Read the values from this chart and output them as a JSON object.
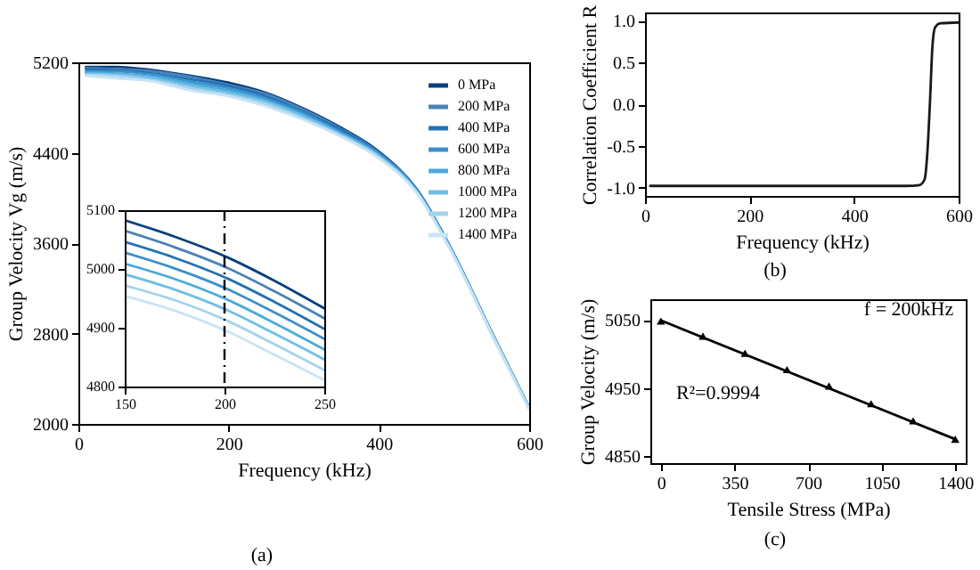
{
  "chart_data": [
    {
      "type": "line",
      "xlabel": "Frequency (kHz)",
      "ylabel": "Group Velocity Vg (m/s)",
      "xlim": [
        0,
        600
      ],
      "ylim": [
        2000,
        5200
      ],
      "xticks": [
        0,
        200,
        400,
        600
      ],
      "yticks": [
        2000,
        2800,
        3600,
        4400,
        5200
      ],
      "legend": "top right",
      "x": [
        10,
        50,
        100,
        150,
        200,
        250,
        300,
        350,
        400,
        450,
        500,
        550,
        600
      ],
      "annotations": [
        "(a)"
      ],
      "series": [
        {
          "name": "0 MPa",
          "color": "#08407e",
          "values": [
            5160,
            5160,
            5130,
            5080,
            5020,
            4930,
            4790,
            4620,
            4410,
            4080,
            3500,
            2810,
            2140
          ]
        },
        {
          "name": "200 MPa",
          "color": "#4b82b8",
          "values": [
            5150,
            5140,
            5120,
            5070,
            5000,
            4920,
            4780,
            4610,
            4400,
            4080,
            3500,
            2810,
            2140
          ]
        },
        {
          "name": "400 MPa",
          "color": "#2171b5",
          "values": [
            5140,
            5130,
            5100,
            5050,
            4990,
            4900,
            4760,
            4600,
            4390,
            4070,
            3490,
            2810,
            2140
          ]
        },
        {
          "name": "600 MPa",
          "color": "#3d8fcc",
          "values": [
            5120,
            5120,
            5090,
            5030,
            4970,
            4880,
            4750,
            4580,
            4390,
            4070,
            3490,
            2800,
            2140
          ]
        },
        {
          "name": "800 MPa",
          "color": "#4aaadc",
          "values": [
            5110,
            5100,
            5070,
            5010,
            4950,
            4860,
            4730,
            4570,
            4380,
            4060,
            3490,
            2800,
            2140
          ]
        },
        {
          "name": "1000 MPa",
          "color": "#6fbfe6",
          "values": [
            5100,
            5090,
            5060,
            4990,
            4930,
            4850,
            4720,
            4560,
            4370,
            4060,
            3490,
            2800,
            2140
          ]
        },
        {
          "name": "1200 MPa",
          "color": "#a3d3ee",
          "values": [
            5090,
            5080,
            5040,
            4970,
            4910,
            4830,
            4700,
            4550,
            4360,
            4050,
            3480,
            2800,
            2130
          ]
        },
        {
          "name": "1400 MPa",
          "color": "#c9e4f4",
          "values": [
            5080,
            5060,
            5030,
            4950,
            4900,
            4810,
            4690,
            4540,
            4350,
            4050,
            3480,
            2800,
            2130
          ]
        }
      ]
    },
    {
      "type": "line",
      "xlim": [
        150,
        250
      ],
      "ylim": [
        4800,
        5100
      ],
      "xticks": [
        150,
        200,
        250
      ],
      "yticks": [
        4800,
        4900,
        5000,
        5100
      ],
      "x": [
        150,
        175,
        200,
        225,
        250
      ],
      "ref_lines": [
        {
          "axis": "x",
          "value": 200,
          "color": "#000000",
          "line_style": "dashed"
        }
      ],
      "series": [
        {
          "color": "#08407e",
          "values": [
            5083,
            5055,
            5022,
            4980,
            4933
          ]
        },
        {
          "color": "#4b82b8",
          "values": [
            5065,
            5037,
            5004,
            4962,
            4916
          ]
        },
        {
          "color": "#2171b5",
          "values": [
            5046,
            5019,
            4986,
            4944,
            4898
          ]
        },
        {
          "color": "#3d8fcc",
          "values": [
            5028,
            5001,
            4968,
            4926,
            4881
          ]
        },
        {
          "color": "#4aaadc",
          "values": [
            5009,
            4983,
            4950,
            4908,
            4863
          ]
        },
        {
          "color": "#6fbfe6",
          "values": [
            4991,
            4965,
            4932,
            4890,
            4846
          ]
        },
        {
          "color": "#a3d3ee",
          "values": [
            4972,
            4947,
            4914,
            4872,
            4828
          ]
        },
        {
          "color": "#c9e4f4",
          "values": [
            4954,
            4929,
            4896,
            4854,
            4811
          ]
        }
      ]
    },
    {
      "type": "line",
      "xlabel": "Frequency (kHz)",
      "ylabel": "Correlation Coefficient R",
      "xlim": [
        0,
        600
      ],
      "ylim": [
        -1.1,
        1.1
      ],
      "xticks": [
        0,
        200,
        400,
        600
      ],
      "yticks": [
        {
          "value": -1,
          "label": "-1.0"
        },
        -0.5,
        {
          "value": 0,
          "label": "0.0"
        },
        0.5,
        {
          "value": 1,
          "label": "1.0"
        }
      ],
      "annotations": [
        "(b)"
      ],
      "x": [
        10,
        500,
        525,
        535,
        540,
        545,
        550,
        555,
        565,
        600
      ],
      "series": [
        {
          "color": "#1a1a1a",
          "values": [
            -0.98,
            -0.98,
            -0.97,
            -0.9,
            -0.6,
            0.0,
            0.7,
            0.92,
            0.97,
            0.98
          ]
        }
      ]
    },
    {
      "type": "scatter",
      "xlabel": "Tensile Stress (MPa)",
      "ylabel": "Group Velocity (m/s)",
      "xlim": [
        -50,
        1450
      ],
      "ylim": [
        4840,
        5080
      ],
      "xticks": [
        0,
        350,
        700,
        1050,
        1400
      ],
      "yticks": [
        4850,
        4950,
        5050
      ],
      "annotations": [
        "f = 200kHz",
        "R²=0.9994",
        "(c)"
      ],
      "x": [
        0,
        200,
        400,
        600,
        800,
        1000,
        1200,
        1400
      ],
      "series": [
        {
          "type": "line",
          "color": "#000000",
          "x": [
            0,
            1400
          ],
          "values": [
            5049,
            4875
          ]
        },
        {
          "type": "scatter",
          "color": "#000000",
          "marker": "triangle",
          "values": [
            5048,
            5026,
            5001,
            4977,
            4953,
            4927,
            4902,
            4875
          ]
        }
      ]
    }
  ]
}
